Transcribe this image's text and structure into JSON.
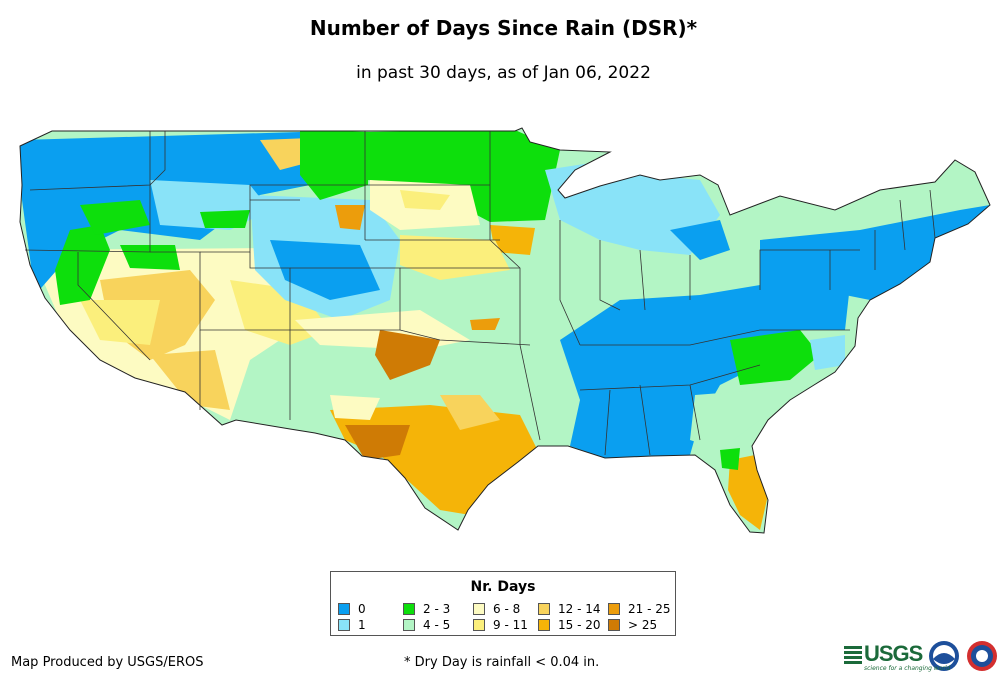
{
  "header": {
    "title": "Number of Days Since Rain (DSR)*",
    "subtitle": "in past 30 days, as of Jan 06, 2022"
  },
  "legend": {
    "title": "Nr. Days",
    "items": [
      {
        "label": "0",
        "color": "#0a9ff0"
      },
      {
        "label": "1",
        "color": "#89e3f8"
      },
      {
        "label": "2 - 3",
        "color": "#0ddf0c"
      },
      {
        "label": "4 - 5",
        "color": "#b3f5c5"
      },
      {
        "label": "6 - 8",
        "color": "#fdfbc2"
      },
      {
        "label": "9 - 11",
        "color": "#fbef7c"
      },
      {
        "label": "12 - 14",
        "color": "#f8d35c"
      },
      {
        "label": "15 - 20",
        "color": "#f5b408"
      },
      {
        "label": "21 - 25",
        "color": "#ec9d0c"
      },
      {
        "label": "> 25",
        "color": "#cf7b05"
      }
    ]
  },
  "footer": {
    "credit": "Map Produced by USGS/EROS",
    "note": "* Dry Day is rainfall < 0.04 in.",
    "usgs_logo_text": "USGS",
    "usgs_tagline": "science for a changing world",
    "agency_icons": [
      "noaa-icon",
      "nws-icon"
    ]
  }
}
